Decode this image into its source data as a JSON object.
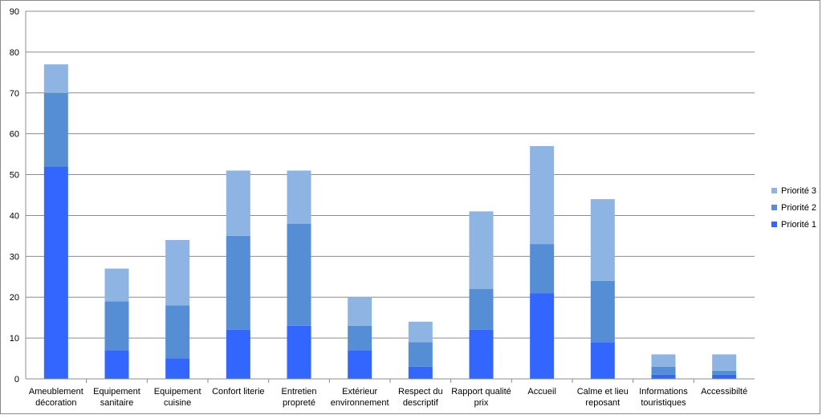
{
  "chart_data": {
    "type": "bar",
    "stacked": true,
    "categories": [
      "Ameublement\ndécoration",
      "Equipement\nsanitaire",
      "Equipement\ncuisine",
      "Confort literie",
      "Entretien\npropreté",
      "Extérieur\nenvironnement",
      "Respect du\ndescriptif",
      "Rapport qualité\nprix",
      "Accueil",
      "Calme et lieu\nreposant",
      "Informations\ntouristiques",
      "Accessibilté"
    ],
    "series": [
      {
        "name": "Priorité 1",
        "color": "#3366FF",
        "values": [
          52,
          7,
          5,
          12,
          13,
          7,
          3,
          12,
          21,
          9,
          1,
          1
        ]
      },
      {
        "name": "Priorité 2",
        "color": "#558ED5",
        "values": [
          18,
          12,
          13,
          23,
          25,
          6,
          6,
          10,
          12,
          15,
          2,
          1
        ]
      },
      {
        "name": "Priorité 3",
        "color": "#8EB4E3",
        "values": [
          7,
          8,
          16,
          16,
          13,
          7,
          5,
          19,
          24,
          20,
          3,
          4
        ]
      }
    ],
    "title": "",
    "xlabel": "",
    "ylabel": "",
    "ylim": [
      0,
      90
    ],
    "yticks": [
      0,
      10,
      20,
      30,
      40,
      50,
      60,
      70,
      80,
      90
    ],
    "grid": true,
    "legend_position": "right"
  }
}
